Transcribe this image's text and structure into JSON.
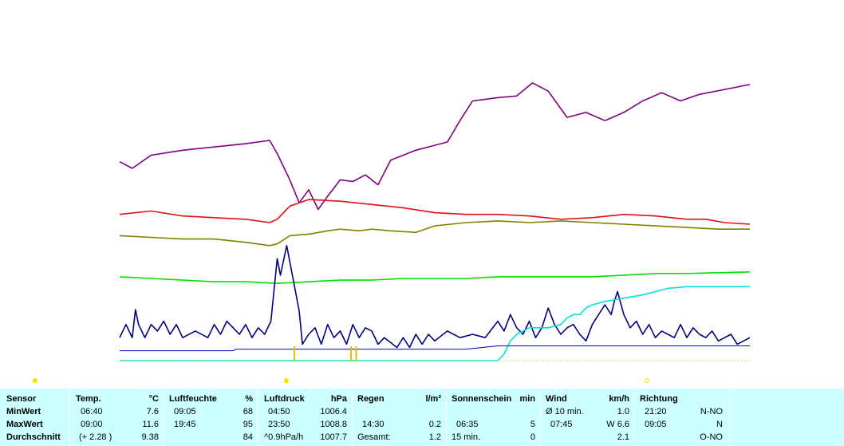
{
  "chart_data": {
    "type": "line",
    "x_range": [
      0,
      1
    ],
    "series": [
      {
        "key": "pressure",
        "color": "#800080",
        "points": [
          [
            0,
            0.605
          ],
          [
            0.02,
            0.585
          ],
          [
            0.05,
            0.625
          ],
          [
            0.1,
            0.64
          ],
          [
            0.15,
            0.65
          ],
          [
            0.2,
            0.66
          ],
          [
            0.238,
            0.67
          ],
          [
            0.25,
            0.63
          ],
          [
            0.27,
            0.55
          ],
          [
            0.285,
            0.48
          ],
          [
            0.3,
            0.52
          ],
          [
            0.315,
            0.46
          ],
          [
            0.33,
            0.5
          ],
          [
            0.35,
            0.55
          ],
          [
            0.37,
            0.545
          ],
          [
            0.39,
            0.565
          ],
          [
            0.41,
            0.535
          ],
          [
            0.43,
            0.61
          ],
          [
            0.47,
            0.64
          ],
          [
            0.5,
            0.655
          ],
          [
            0.52,
            0.665
          ],
          [
            0.54,
            0.73
          ],
          [
            0.56,
            0.79
          ],
          [
            0.6,
            0.8
          ],
          [
            0.63,
            0.805
          ],
          [
            0.655,
            0.845
          ],
          [
            0.68,
            0.82
          ],
          [
            0.71,
            0.74
          ],
          [
            0.74,
            0.755
          ],
          [
            0.77,
            0.73
          ],
          [
            0.8,
            0.755
          ],
          [
            0.83,
            0.79
          ],
          [
            0.86,
            0.815
          ],
          [
            0.89,
            0.79
          ],
          [
            0.92,
            0.81
          ],
          [
            1,
            0.84
          ]
        ]
      },
      {
        "key": "temperature",
        "color": "#e01010",
        "points": [
          [
            0,
            0.445
          ],
          [
            0.05,
            0.455
          ],
          [
            0.1,
            0.44
          ],
          [
            0.15,
            0.435
          ],
          [
            0.2,
            0.43
          ],
          [
            0.238,
            0.42
          ],
          [
            0.25,
            0.43
          ],
          [
            0.27,
            0.47
          ],
          [
            0.3,
            0.49
          ],
          [
            0.35,
            0.485
          ],
          [
            0.4,
            0.475
          ],
          [
            0.45,
            0.465
          ],
          [
            0.5,
            0.45
          ],
          [
            0.55,
            0.445
          ],
          [
            0.6,
            0.445
          ],
          [
            0.65,
            0.44
          ],
          [
            0.7,
            0.43
          ],
          [
            0.75,
            0.435
          ],
          [
            0.8,
            0.445
          ],
          [
            0.85,
            0.44
          ],
          [
            0.9,
            0.43
          ],
          [
            0.93,
            0.43
          ],
          [
            0.96,
            0.42
          ],
          [
            1,
            0.415
          ]
        ]
      },
      {
        "key": "dewpoint",
        "color": "#808000",
        "points": [
          [
            0,
            0.38
          ],
          [
            0.05,
            0.375
          ],
          [
            0.1,
            0.37
          ],
          [
            0.15,
            0.37
          ],
          [
            0.2,
            0.36
          ],
          [
            0.238,
            0.35
          ],
          [
            0.25,
            0.355
          ],
          [
            0.27,
            0.38
          ],
          [
            0.3,
            0.385
          ],
          [
            0.33,
            0.395
          ],
          [
            0.35,
            0.4
          ],
          [
            0.38,
            0.395
          ],
          [
            0.4,
            0.4
          ],
          [
            0.43,
            0.395
          ],
          [
            0.47,
            0.39
          ],
          [
            0.5,
            0.41
          ],
          [
            0.55,
            0.42
          ],
          [
            0.6,
            0.425
          ],
          [
            0.65,
            0.42
          ],
          [
            0.7,
            0.425
          ],
          [
            0.75,
            0.42
          ],
          [
            0.8,
            0.415
          ],
          [
            0.85,
            0.41
          ],
          [
            0.9,
            0.405
          ],
          [
            0.95,
            0.4
          ],
          [
            1,
            0.4
          ]
        ]
      },
      {
        "key": "humidity",
        "color": "#00e000",
        "points": [
          [
            0,
            0.255
          ],
          [
            0.05,
            0.25
          ],
          [
            0.1,
            0.245
          ],
          [
            0.15,
            0.24
          ],
          [
            0.2,
            0.24
          ],
          [
            0.25,
            0.235
          ],
          [
            0.3,
            0.24
          ],
          [
            0.35,
            0.245
          ],
          [
            0.4,
            0.245
          ],
          [
            0.45,
            0.25
          ],
          [
            0.5,
            0.25
          ],
          [
            0.55,
            0.25
          ],
          [
            0.6,
            0.255
          ],
          [
            0.65,
            0.255
          ],
          [
            0.7,
            0.255
          ],
          [
            0.75,
            0.255
          ],
          [
            0.8,
            0.26
          ],
          [
            0.85,
            0.265
          ],
          [
            0.9,
            0.265
          ],
          [
            1,
            0.27
          ]
        ]
      },
      {
        "key": "wind",
        "color": "#000080",
        "points": [
          [
            0,
            0.07
          ],
          [
            0.01,
            0.11
          ],
          [
            0.02,
            0.07
          ],
          [
            0.025,
            0.155
          ],
          [
            0.03,
            0.11
          ],
          [
            0.04,
            0.07
          ],
          [
            0.05,
            0.11
          ],
          [
            0.06,
            0.09
          ],
          [
            0.07,
            0.12
          ],
          [
            0.08,
            0.08
          ],
          [
            0.09,
            0.11
          ],
          [
            0.1,
            0.07
          ],
          [
            0.12,
            0.09
          ],
          [
            0.14,
            0.07
          ],
          [
            0.15,
            0.11
          ],
          [
            0.16,
            0.08
          ],
          [
            0.17,
            0.12
          ],
          [
            0.18,
            0.1
          ],
          [
            0.19,
            0.08
          ],
          [
            0.2,
            0.11
          ],
          [
            0.21,
            0.07
          ],
          [
            0.22,
            0.1
          ],
          [
            0.23,
            0.08
          ],
          [
            0.24,
            0.12
          ],
          [
            0.25,
            0.31
          ],
          [
            0.255,
            0.26
          ],
          [
            0.265,
            0.35
          ],
          [
            0.275,
            0.25
          ],
          [
            0.285,
            0.15
          ],
          [
            0.29,
            0.05
          ],
          [
            0.3,
            0.08
          ],
          [
            0.31,
            0.1
          ],
          [
            0.32,
            0.05
          ],
          [
            0.33,
            0.11
          ],
          [
            0.34,
            0.07
          ],
          [
            0.35,
            0.09
          ],
          [
            0.36,
            0.05
          ],
          [
            0.37,
            0.11
          ],
          [
            0.38,
            0.07
          ],
          [
            0.39,
            0.1
          ],
          [
            0.4,
            0.09
          ],
          [
            0.41,
            0.05
          ],
          [
            0.42,
            0.07
          ],
          [
            0.44,
            0.04
          ],
          [
            0.45,
            0.07
          ],
          [
            0.46,
            0.04
          ],
          [
            0.47,
            0.08
          ],
          [
            0.48,
            0.05
          ],
          [
            0.49,
            0.08
          ],
          [
            0.5,
            0.06
          ],
          [
            0.52,
            0.09
          ],
          [
            0.54,
            0.07
          ],
          [
            0.56,
            0.08
          ],
          [
            0.58,
            0.07
          ],
          [
            0.6,
            0.12
          ],
          [
            0.61,
            0.09
          ],
          [
            0.62,
            0.14
          ],
          [
            0.63,
            0.1
          ],
          [
            0.64,
            0.08
          ],
          [
            0.65,
            0.12
          ],
          [
            0.66,
            0.07
          ],
          [
            0.67,
            0.1
          ],
          [
            0.68,
            0.16
          ],
          [
            0.69,
            0.11
          ],
          [
            0.7,
            0.08
          ],
          [
            0.71,
            0.1
          ],
          [
            0.72,
            0.11
          ],
          [
            0.73,
            0.08
          ],
          [
            0.74,
            0.06
          ],
          [
            0.75,
            0.11
          ],
          [
            0.76,
            0.14
          ],
          [
            0.77,
            0.17
          ],
          [
            0.78,
            0.14
          ],
          [
            0.785,
            0.18
          ],
          [
            0.79,
            0.21
          ],
          [
            0.8,
            0.14
          ],
          [
            0.81,
            0.1
          ],
          [
            0.82,
            0.12
          ],
          [
            0.83,
            0.08
          ],
          [
            0.84,
            0.11
          ],
          [
            0.85,
            0.07
          ],
          [
            0.86,
            0.09
          ],
          [
            0.87,
            0.08
          ],
          [
            0.88,
            0.07
          ],
          [
            0.89,
            0.11
          ],
          [
            0.9,
            0.07
          ],
          [
            0.91,
            0.1
          ],
          [
            0.92,
            0.08
          ],
          [
            0.93,
            0.07
          ],
          [
            0.94,
            0.09
          ],
          [
            0.95,
            0.06
          ],
          [
            0.96,
            0.07
          ],
          [
            0.97,
            0.08
          ],
          [
            0.98,
            0.05
          ],
          [
            1,
            0.07
          ]
        ]
      },
      {
        "key": "sunshine",
        "color": "#00e0e0",
        "points": [
          [
            0,
            0.0
          ],
          [
            0.6,
            0.0
          ],
          [
            0.61,
            0.02
          ],
          [
            0.62,
            0.06
          ],
          [
            0.63,
            0.08
          ],
          [
            0.64,
            0.09
          ],
          [
            0.65,
            0.1
          ],
          [
            0.66,
            0.1
          ],
          [
            0.68,
            0.1
          ],
          [
            0.7,
            0.11
          ],
          [
            0.71,
            0.13
          ],
          [
            0.72,
            0.14
          ],
          [
            0.73,
            0.14
          ],
          [
            0.74,
            0.16
          ],
          [
            0.75,
            0.17
          ],
          [
            0.77,
            0.18
          ],
          [
            0.8,
            0.19
          ],
          [
            0.83,
            0.2
          ],
          [
            0.85,
            0.21
          ],
          [
            0.87,
            0.22
          ],
          [
            0.9,
            0.225
          ],
          [
            0.95,
            0.225
          ],
          [
            1,
            0.225
          ]
        ]
      }
    ],
    "rain_bars": [
      0.276,
      0.366,
      0.374
    ]
  },
  "panel": {
    "columns": [
      {
        "header": "Sensor",
        "unit": "",
        "rows": [
          [
            "MinWert",
            ""
          ],
          [
            "MaxWert",
            ""
          ],
          [
            "Durchschnitt",
            ""
          ]
        ]
      },
      {
        "header": "Temp.",
        "unit": "°C",
        "rows": [
          [
            "06:40",
            "7.6"
          ],
          [
            "09:00",
            "11.6"
          ],
          [
            "(+ 2.28 )",
            "9.38"
          ]
        ]
      },
      {
        "header": "Luftfeuchte",
        "unit": "%",
        "rows": [
          [
            "09:05",
            "68"
          ],
          [
            "19:45",
            "95"
          ],
          [
            "",
            "84"
          ]
        ]
      },
      {
        "header": "Luftdruck",
        "unit": "hPa",
        "rows": [
          [
            "04:50",
            "1006.4"
          ],
          [
            "23:50",
            "1008.8"
          ],
          [
            "^0.9hPa/h",
            "1007.7"
          ]
        ]
      },
      {
        "header": "Regen",
        "unit": "l/m²",
        "rows": [
          [
            "",
            ""
          ],
          [
            "14:30",
            "0.2"
          ],
          [
            "Gesamt:",
            "1.2"
          ]
        ]
      },
      {
        "header": "Sonnenschein",
        "unit": "min",
        "rows": [
          [
            "",
            ""
          ],
          [
            "06:35",
            "5"
          ],
          [
            "15 min.",
            "0"
          ]
        ]
      },
      {
        "header": "Wind",
        "unit": "km/h",
        "rows": [
          [
            "Ø 10 min.",
            "1.0"
          ],
          [
            "07:45",
            "W 6.6"
          ],
          [
            "",
            "2.1"
          ]
        ]
      },
      {
        "header": "Richtung",
        "unit": "",
        "rows": [
          [
            "21:20",
            "N-NO"
          ],
          [
            "09:05",
            "N"
          ],
          [
            "",
            "O-NO"
          ]
        ]
      }
    ]
  },
  "colors": {
    "panel_bg": "#ccffff",
    "marker": "#ffdd00"
  }
}
